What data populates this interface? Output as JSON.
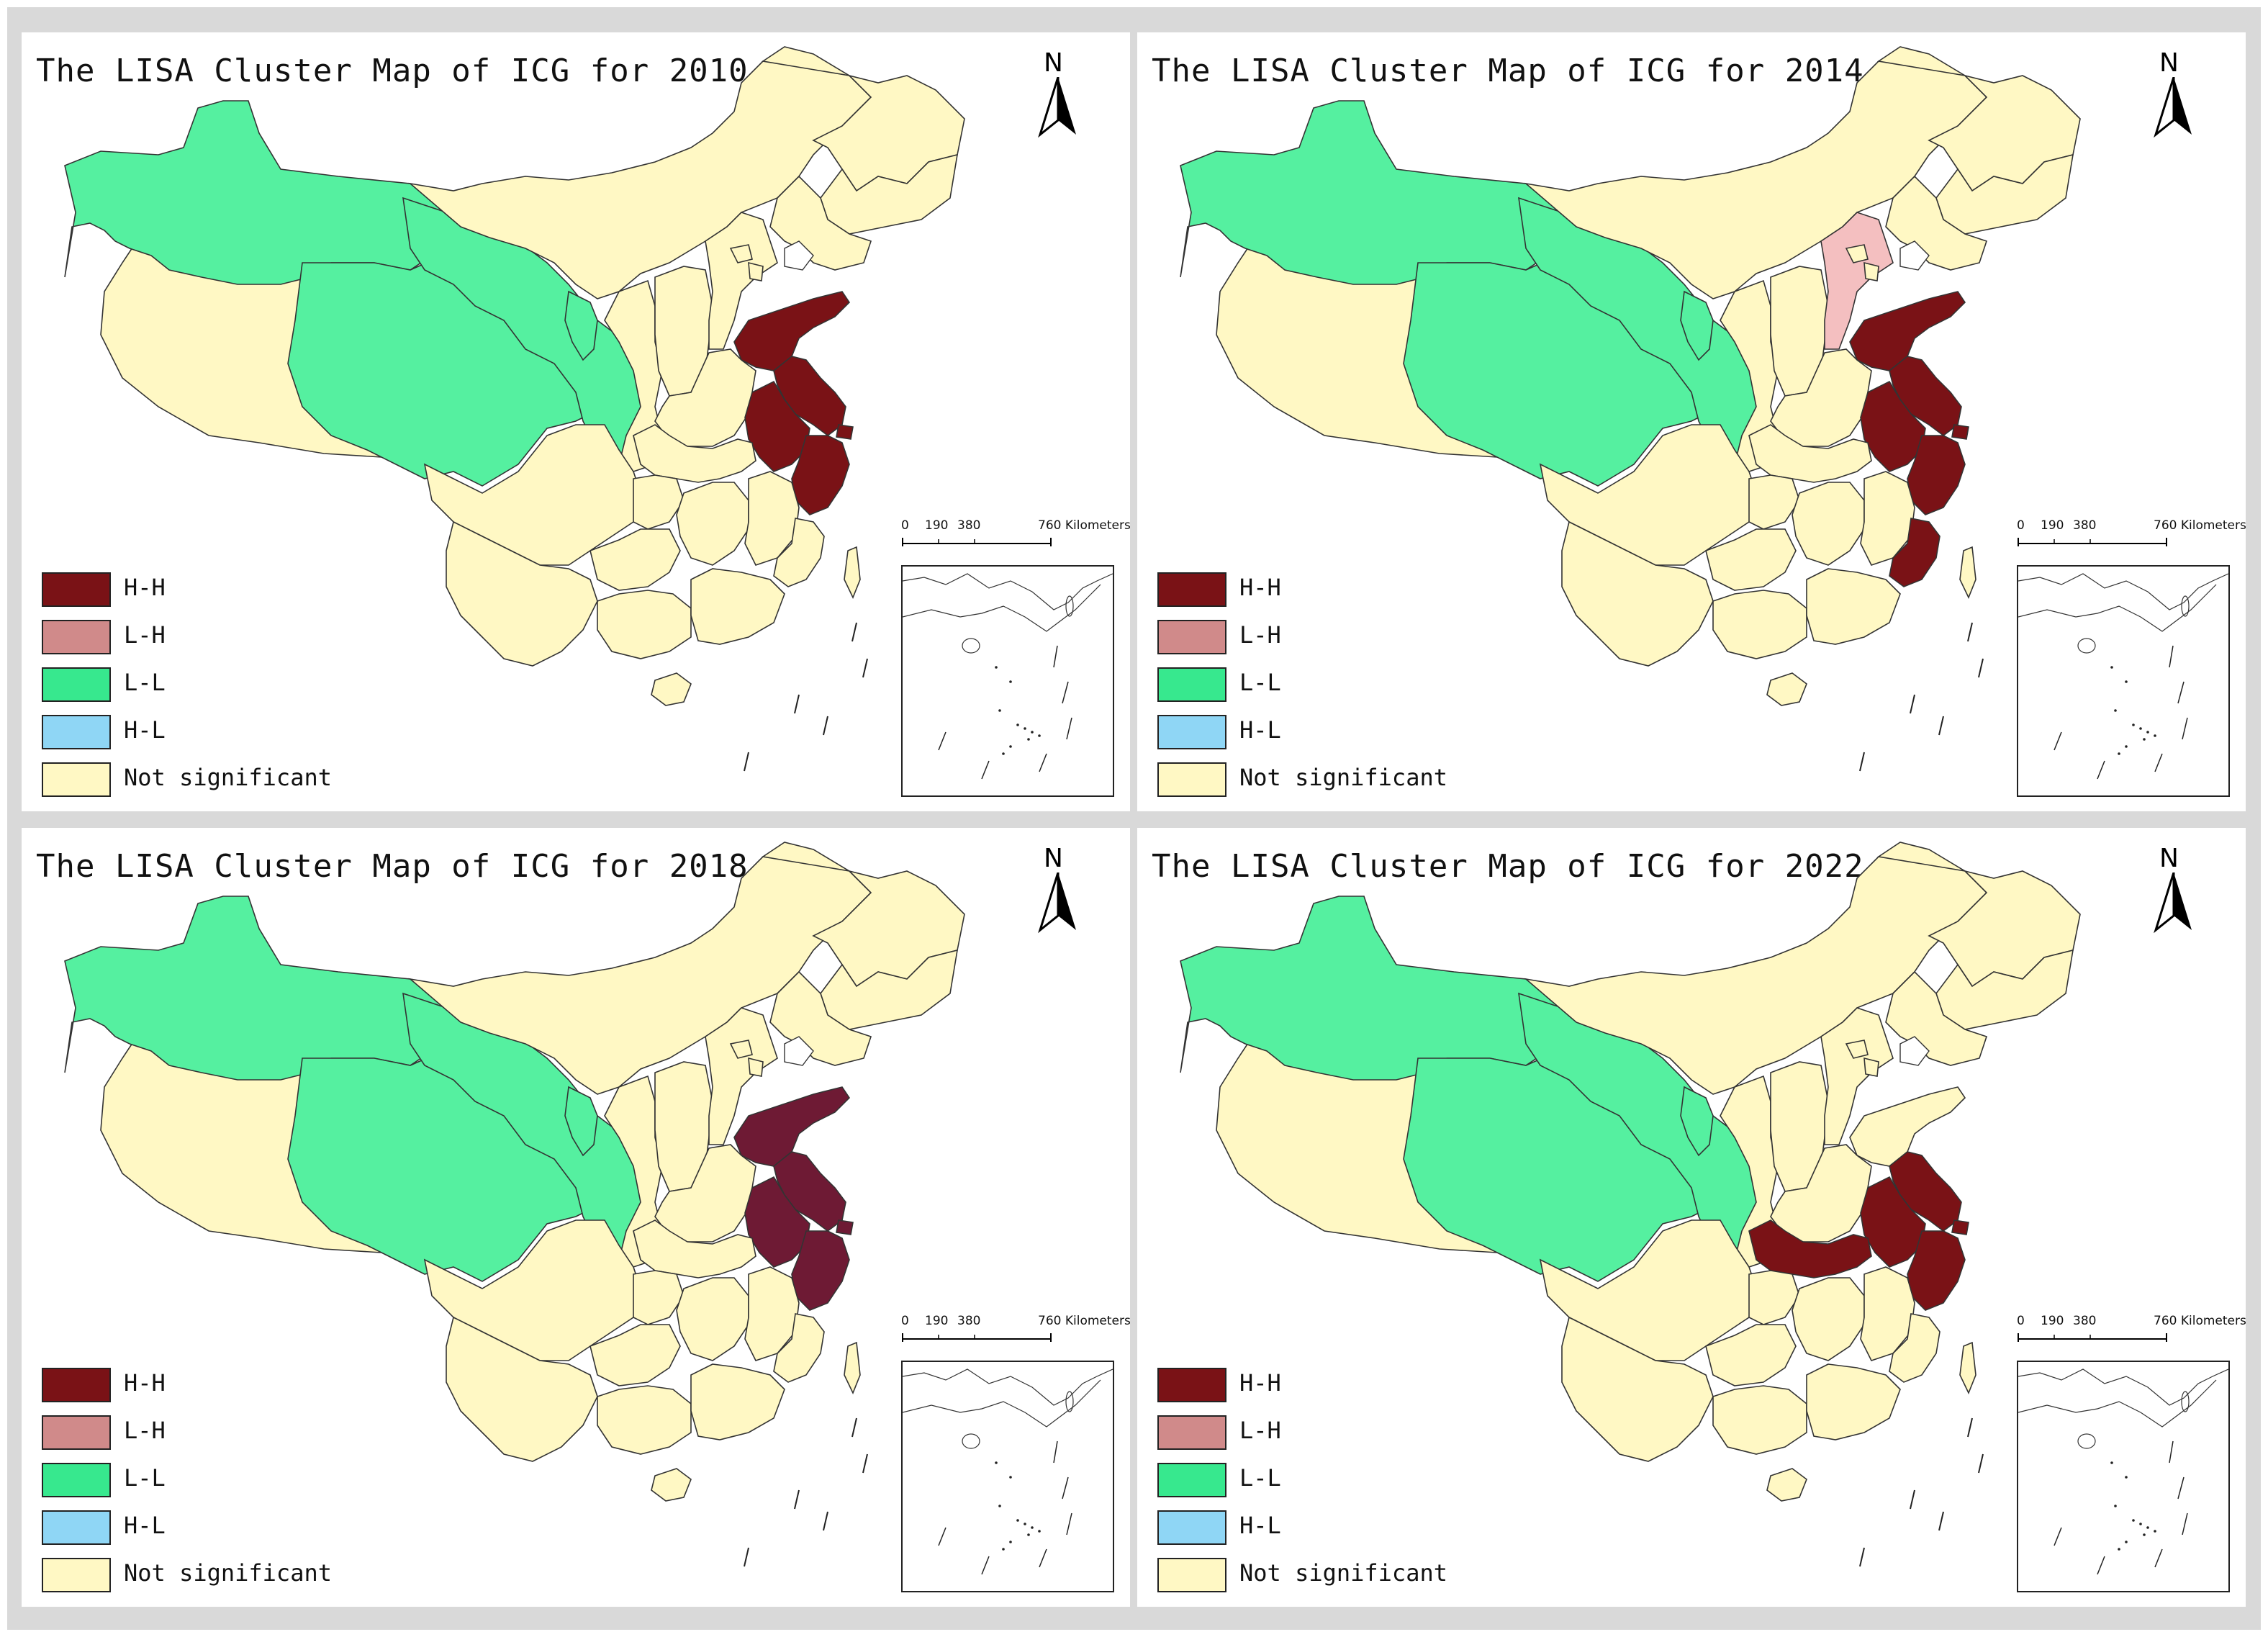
{
  "colors": {
    "HH": "#7a1216",
    "HH_2018": "#6e1a34",
    "LH": "#f4bfc0",
    "LL": "#55f0a0",
    "HL": "#8fd6f5",
    "NS": "#fff8c4",
    "nodata": "#ffffff",
    "legend_LH_swatch": "#d08a8a",
    "legend_LL_swatch": "#37e88e"
  },
  "legend": [
    {
      "key": "HH",
      "label": "H-H"
    },
    {
      "key": "LH",
      "label": "L-H"
    },
    {
      "key": "LL",
      "label": "L-L"
    },
    {
      "key": "HL",
      "label": "H-L"
    },
    {
      "key": "NS",
      "label": "Not significant"
    }
  ],
  "scale_bar": {
    "ticks": [
      "0",
      "190",
      "380",
      "760 Kilometers"
    ]
  },
  "north_label": "N",
  "panels": [
    {
      "title": "The LISA Cluster Map of ICG for 2010",
      "clusters": {
        "Xinjiang": "LL",
        "Qinghai": "LL",
        "Gansu": "LL",
        "Ningxia": "LL",
        "Shandong": "HH",
        "Jiangsu": "HH",
        "Anhui": "HH",
        "Shanghai": "HH",
        "Zhejiang": "HH"
      }
    },
    {
      "title": "The LISA Cluster Map of ICG for 2014",
      "clusters": {
        "Xinjiang": "LL",
        "Qinghai": "LL",
        "Gansu": "LL",
        "Ningxia": "LL",
        "Hebei": "LH",
        "Shandong": "HH",
        "Jiangsu": "HH",
        "Anhui": "HH",
        "Shanghai": "HH",
        "Zhejiang": "HH",
        "Fujian": "HH"
      }
    },
    {
      "title": "The LISA Cluster Map of ICG for 2018",
      "clusters": {
        "Xinjiang": "LL",
        "Qinghai": "LL",
        "Gansu": "LL",
        "Ningxia": "LL",
        "Shandong": "HH",
        "Jiangsu": "HH",
        "Anhui": "HH",
        "Shanghai": "HH",
        "Zhejiang": "HH"
      }
    },
    {
      "title": "The LISA Cluster Map of ICG for 2022",
      "clusters": {
        "Xinjiang": "LL",
        "Qinghai": "LL",
        "Gansu": "LL",
        "Ningxia": "LL",
        "Hubei": "HH",
        "Anhui": "HH",
        "Jiangsu": "HH",
        "Shanghai": "HH",
        "Zhejiang": "HH"
      }
    }
  ]
}
